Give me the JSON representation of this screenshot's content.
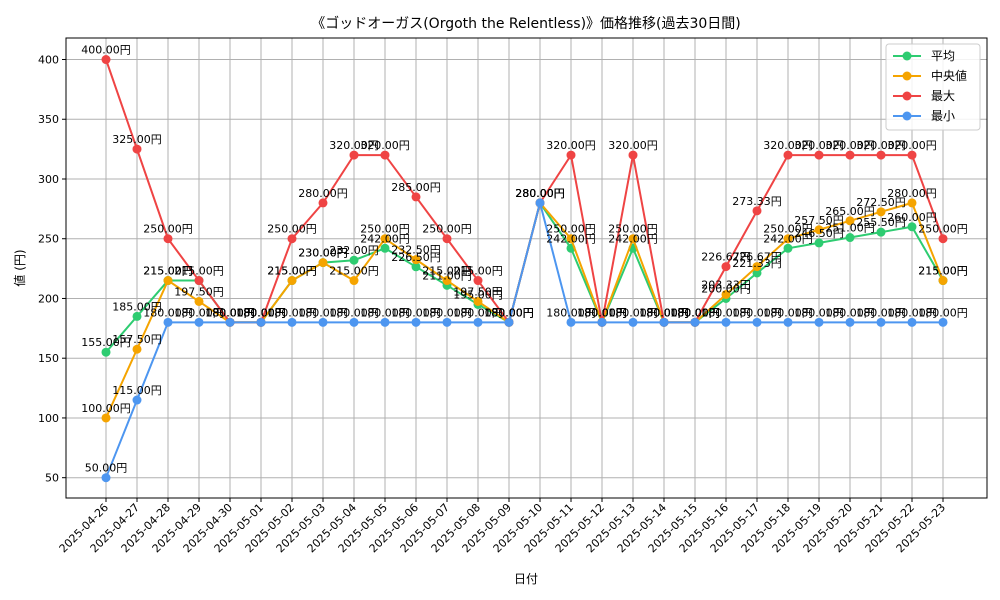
{
  "chart_data": {
    "type": "line",
    "title": "《ゴッドオーガス(Orgoth the Relentless)》価格推移(過去30日間)",
    "xlabel": "日付",
    "ylabel": "値 (円)",
    "ylim": [
      33,
      418
    ],
    "yticks": [
      50,
      100,
      150,
      200,
      250,
      300,
      350,
      400
    ],
    "grid": true,
    "legend_position": "top-right",
    "label_suffix": "円",
    "categories": [
      "2025-04-26",
      "2025-04-27",
      "2025-04-28",
      "2025-04-29",
      "2025-04-30",
      "2025-05-01",
      "2025-05-02",
      "2025-05-03",
      "2025-05-04",
      "2025-05-05",
      "2025-05-06",
      "2025-05-07",
      "2025-05-08",
      "2025-05-09",
      "2025-05-10",
      "2025-05-11",
      "2025-05-12",
      "2025-05-13",
      "2025-05-14",
      "2025-05-15",
      "2025-05-16",
      "2025-05-17",
      "2025-05-18",
      "2025-05-19",
      "2025-05-20",
      "2025-05-21",
      "2025-05-22",
      "2025-05-23"
    ],
    "series": [
      {
        "name": "平均",
        "color": "#2ecc71",
        "values": [
          155,
          185,
          215,
          215,
          180,
          180,
          215,
          230,
          232,
          242,
          226.5,
          211,
          195,
          180,
          280,
          242,
          180,
          242,
          180,
          180,
          200,
          221.33,
          242,
          246.5,
          251,
          255.5,
          260,
          215
        ],
        "labels": [
          "155.00",
          "185.00",
          "215.00",
          "",
          "180.00",
          "180.00",
          "215.00",
          "230.00",
          "232.00",
          "242.00",
          "226.50",
          "211.00",
          "195.00",
          "180.00",
          "280.00",
          "242.00",
          "180.00",
          "242.00",
          "180.00",
          "180.00",
          "200.00",
          "221.33",
          "242.00",
          "246.50",
          "251.00",
          "255.50",
          "260.00",
          "215.00"
        ]
      },
      {
        "name": "中央値",
        "color": "#f5a400",
        "values": [
          100,
          157.5,
          215,
          197.5,
          180,
          180,
          215,
          230,
          215,
          250,
          232.5,
          215,
          197.5,
          180,
          280,
          250,
          180,
          250,
          180,
          180,
          203.33,
          226.67,
          250,
          257.5,
          265,
          272.5,
          280,
          215
        ],
        "labels": [
          "100.00",
          "157.50",
          "215.00",
          "197.50",
          "180.00",
          "180.00",
          "215.00",
          "230.00",
          "215.00",
          "250.00",
          "232.50",
          "215.00",
          "197.50",
          "180.00",
          "280.00",
          "250.00",
          "180.00",
          "250.00",
          "180.00",
          "180.00",
          "203.33",
          "226.67",
          "250.00",
          "257.50",
          "265.00",
          "272.50",
          "280.00",
          "215.00"
        ]
      },
      {
        "name": "最大",
        "color": "#ef4444",
        "values": [
          400,
          325,
          250,
          215,
          180,
          180,
          250,
          280,
          320,
          320,
          285,
          250,
          215,
          180,
          280,
          320,
          180,
          320,
          180,
          180,
          226.67,
          273.33,
          320,
          320,
          320,
          320,
          320,
          250
        ],
        "labels": [
          "400.00",
          "325.00",
          "250.00",
          "215.00",
          "180.00",
          "180.00",
          "250.00",
          "280.00",
          "320.00",
          "320.00",
          "285.00",
          "250.00",
          "215.00",
          "180.00",
          "280.00",
          "320.00",
          "180.00",
          "320.00",
          "180.00",
          "180.00",
          "226.67",
          "273.33",
          "320.00",
          "320.00",
          "320.00",
          "320.00",
          "320.00",
          "250.00"
        ]
      },
      {
        "name": "最小",
        "color": "#4d96f0",
        "values": [
          50,
          115,
          180,
          180,
          180,
          180,
          180,
          180,
          180,
          180,
          180,
          180,
          180,
          180,
          280,
          180,
          180,
          180,
          180,
          180,
          180,
          180,
          180,
          180,
          180,
          180,
          180,
          180
        ],
        "labels": [
          "50.00",
          "115.00",
          "180.00",
          "180.00",
          "180.00",
          "180.00",
          "180.00",
          "180.00",
          "180.00",
          "180.00",
          "180.00",
          "180.00",
          "180.00",
          "180.00",
          "280.00",
          "180.00",
          "180.00",
          "180.00",
          "180.00",
          "180.00",
          "180.00",
          "180.00",
          "180.00",
          "180.00",
          "180.00",
          "180.00",
          "180.00",
          "180.00"
        ]
      }
    ]
  }
}
